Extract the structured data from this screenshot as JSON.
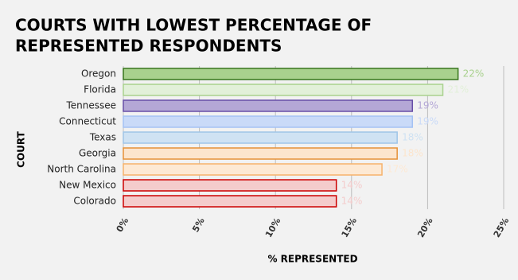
{
  "chart_data": {
    "type": "bar",
    "title_lines": [
      "COURTS WITH LOWEST PERCENTAGE OF",
      "REPRESENTED RESPONDENTS"
    ],
    "x_label": "% REPRESENTED",
    "y_label": "COURT",
    "categories": [
      "Oregon",
      "Florida",
      "Tennessee",
      "Connecticut",
      "Texas",
      "Georgia",
      "North Carolina",
      "New Mexico",
      "Colorado"
    ],
    "values": [
      22,
      21,
      19,
      19,
      18,
      18,
      17,
      14,
      14
    ],
    "value_labels": [
      "22%",
      "21%",
      "19%",
      "19%",
      "18%",
      "18%",
      "17%",
      "14%",
      "14%"
    ],
    "colors": [
      "#a9d18e",
      "#e2f0d9",
      "#b4a7d6",
      "#c9daf8",
      "#cfe2f3",
      "#fce5cd",
      "#fde9d4",
      "#f4cccc",
      "#f4cccc"
    ],
    "border_colors": [
      "#38761d",
      "#a9d18e",
      "#674ea7",
      "#a4c2f4",
      "#9fc5e8",
      "#e69138",
      "#f6b26b",
      "#cc0000",
      "#cc0000"
    ],
    "xlim": [
      0,
      25
    ],
    "xticks": [
      {
        "value": 0,
        "label": "0%"
      },
      {
        "value": 5,
        "label": "5%"
      },
      {
        "value": 10,
        "label": "10%"
      },
      {
        "value": 15,
        "label": "15%"
      },
      {
        "value": 20,
        "label": "20%"
      },
      {
        "value": 25,
        "label": "25%"
      }
    ],
    "grid": true
  }
}
